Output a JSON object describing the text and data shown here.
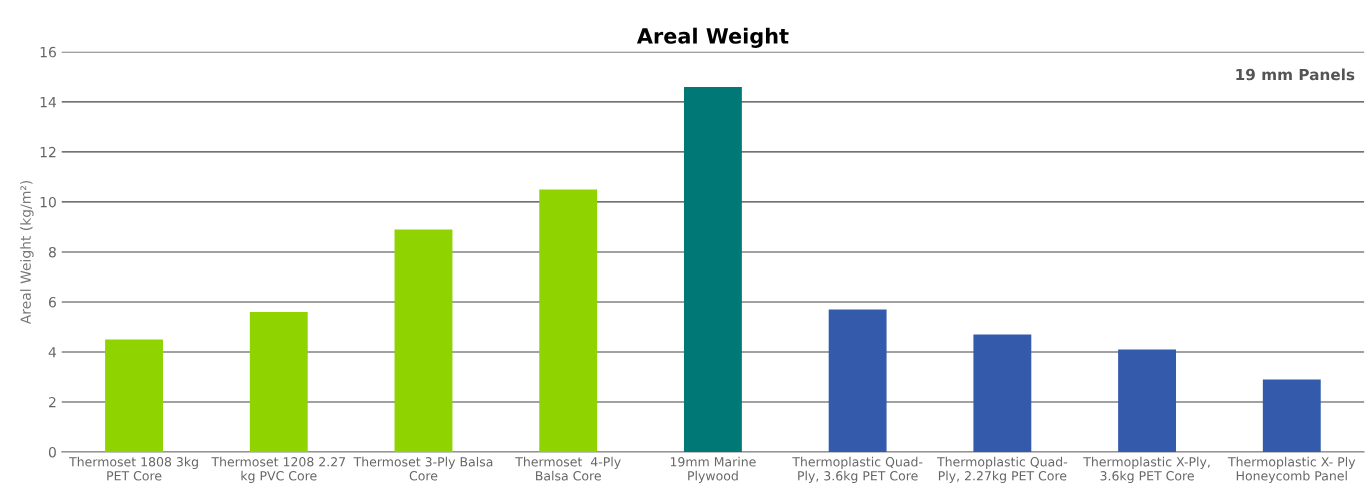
{
  "chart_data": {
    "type": "bar",
    "title": "Areal Weight",
    "ylabel": "Areal Weight (kg/m²)",
    "categories": [
      "Thermoset 1808 3kg\nPET Core",
      "Thermoset 1208 2.27\nkg PVC Core",
      "Thermoset 3-Ply Balsa\nCore",
      "Thermoset  4-Ply\nBalsa Core",
      "19mm Marine\nPlywood",
      "Thermoplastic Quad-\nPly, 3.6kg PET Core",
      "Thermoplastic Quad-\nPly, 2.27kg PET Core",
      "Thermoplastic X-Ply,\n3.6kg PET Core",
      "Thermoplastic X- Ply\nHoneycomb Panel"
    ],
    "values": [
      4.5,
      5.6,
      8.9,
      10.5,
      14.6,
      5.7,
      4.7,
      4.1,
      2.9
    ],
    "colors": [
      "#8fd400",
      "#8fd400",
      "#8fd400",
      "#8fd400",
      "#007876",
      "#345aab",
      "#345aab",
      "#345aab",
      "#345aab"
    ],
    "ylim": [
      0,
      16
    ],
    "yticks": [
      0,
      2,
      4,
      6,
      8,
      10,
      12,
      14,
      16
    ],
    "grid": "y",
    "annotations": [
      "19 mm Panels"
    ]
  }
}
